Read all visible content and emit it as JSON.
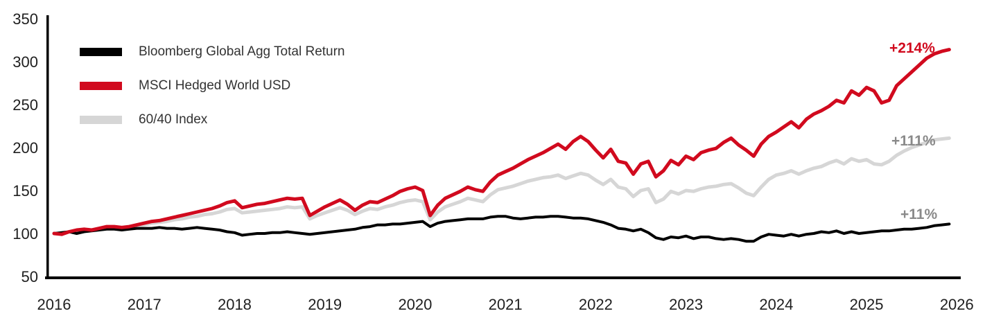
{
  "chart_data": {
    "type": "line",
    "title": "",
    "xlabel": "",
    "ylabel": "",
    "grid": false,
    "legend_position": "top-left",
    "index_base": 100,
    "frequency": "monthly",
    "xlim": [
      2016,
      2026
    ],
    "ylim": [
      50,
      350
    ],
    "y_ticks": [
      350,
      300,
      250,
      200,
      150,
      100,
      50
    ],
    "x_ticks": [
      "2016",
      "2017",
      "2018",
      "2019",
      "2020",
      "2021",
      "2022",
      "2023",
      "2024",
      "2025",
      "2026"
    ],
    "x_start_year": 2016,
    "series": [
      {
        "id": "bloomberg-global-agg",
        "name": "Bloomberg Global Agg Total Return",
        "color": "#000000",
        "end_label": "+11%",
        "end_label_color": "#8a8a8a",
        "values": [
          100,
          101,
          102,
          100,
          102,
          103,
          104,
          105,
          105,
          104,
          105,
          106,
          106,
          106,
          107,
          106,
          106,
          105,
          106,
          107,
          106,
          105,
          104,
          102,
          101,
          98,
          99,
          100,
          100,
          101,
          101,
          102,
          101,
          100,
          99,
          100,
          101,
          102,
          103,
          104,
          105,
          107,
          108,
          110,
          110,
          111,
          111,
          112,
          113,
          114,
          108,
          112,
          114,
          115,
          116,
          117,
          117,
          117,
          119,
          120,
          120,
          118,
          117,
          118,
          119,
          119,
          120,
          120,
          119,
          118,
          118,
          117,
          115,
          113,
          110,
          106,
          105,
          103,
          105,
          101,
          95,
          93,
          96,
          95,
          97,
          94,
          96,
          96,
          94,
          93,
          94,
          93,
          91,
          91,
          96,
          99,
          98,
          97,
          99,
          97,
          99,
          100,
          102,
          101,
          103,
          100,
          102,
          100,
          101,
          102,
          103,
          103,
          104,
          105,
          105,
          106,
          107,
          109,
          110,
          111
        ]
      },
      {
        "id": "msci-hedged-world",
        "name": "MSCI Hedged World USD",
        "color": "#d10a1e",
        "end_label": "+214%",
        "end_label_color": "#d10a1e",
        "values": [
          100,
          99,
          102,
          104,
          105,
          104,
          106,
          108,
          108,
          107,
          108,
          110,
          112,
          114,
          115,
          117,
          119,
          121,
          123,
          125,
          127,
          129,
          132,
          136,
          138,
          130,
          132,
          134,
          135,
          137,
          139,
          141,
          140,
          141,
          121,
          126,
          131,
          135,
          139,
          134,
          127,
          133,
          137,
          136,
          140,
          144,
          149,
          152,
          154,
          150,
          121,
          133,
          141,
          145,
          149,
          154,
          151,
          149,
          160,
          168,
          172,
          176,
          181,
          186,
          190,
          194,
          199,
          204,
          198,
          207,
          213,
          207,
          197,
          188,
          198,
          184,
          182,
          169,
          181,
          184,
          166,
          173,
          185,
          180,
          190,
          186,
          194,
          197,
          199,
          206,
          211,
          203,
          197,
          190,
          204,
          213,
          218,
          224,
          230,
          223,
          233,
          239,
          243,
          248,
          255,
          252,
          266,
          261,
          270,
          266,
          252,
          255,
          272,
          280,
          288,
          296,
          304,
          309,
          312,
          314
        ]
      },
      {
        "id": "sixty-forty-index",
        "name": "60/40 Index",
        "color": "#d6d6d6",
        "end_label": "+111%",
        "end_label_color": "#8a8a8a",
        "values": [
          100,
          100,
          102,
          103,
          104,
          104,
          105,
          107,
          107,
          106,
          107,
          109,
          110,
          112,
          113,
          114,
          116,
          117,
          119,
          120,
          122,
          123,
          125,
          128,
          129,
          124,
          125,
          126,
          127,
          128,
          129,
          131,
          130,
          131,
          117,
          121,
          124,
          127,
          130,
          127,
          122,
          126,
          129,
          128,
          131,
          133,
          136,
          138,
          139,
          137,
          116,
          125,
          131,
          134,
          137,
          141,
          139,
          137,
          145,
          151,
          153,
          155,
          158,
          161,
          163,
          165,
          166,
          168,
          164,
          167,
          170,
          168,
          162,
          157,
          163,
          154,
          152,
          143,
          150,
          152,
          136,
          140,
          149,
          146,
          150,
          149,
          152,
          154,
          155,
          157,
          158,
          153,
          147,
          144,
          154,
          163,
          168,
          170,
          173,
          169,
          173,
          176,
          178,
          182,
          185,
          181,
          187,
          184,
          186,
          181,
          180,
          184,
          191,
          196,
          200,
          203,
          206,
          209,
          210,
          211
        ]
      }
    ]
  }
}
